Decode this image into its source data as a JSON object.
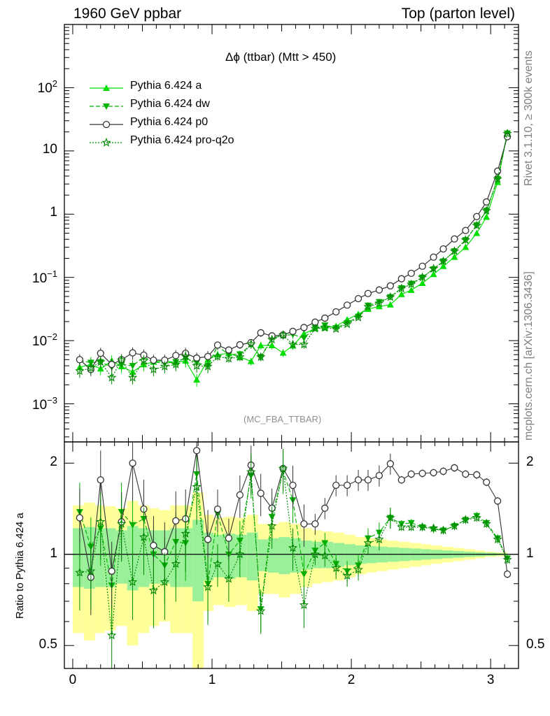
{
  "header": {
    "left": "1960 GeV ppbar",
    "right": "Top (parton level)"
  },
  "side_labels": {
    "rivet": "Rivet 3.1.10, ≥ 300k events",
    "site": "mcplots.cern.ch [arXiv:1306.3436]"
  },
  "colors": {
    "pythia_a": "#00e000",
    "pythia_dw": "#00b000",
    "pythia_p0": "#333333",
    "pythia_proq2o": "#008800",
    "band_inner": "#99f099",
    "band_outer": "#ffff99"
  },
  "chart_data": [
    {
      "type": "line",
      "title": "Δϕ (ttbar) (Mtt > 450)",
      "analysis_label": "(MC_FBA_TTBAR)",
      "xlim": [
        -0.06,
        3.2
      ],
      "ylim": [
        0.00025,
        1000
      ],
      "yscale": "log",
      "legend_position": "top-left",
      "ytick_labels": [
        "10^-3",
        "10^-2",
        "10^-1",
        "1",
        "10",
        "10^2"
      ],
      "x": [
        0.05,
        0.13,
        0.2,
        0.28,
        0.35,
        0.43,
        0.51,
        0.58,
        0.66,
        0.74,
        0.81,
        0.89,
        0.97,
        1.04,
        1.12,
        1.2,
        1.28,
        1.35,
        1.43,
        1.51,
        1.58,
        1.66,
        1.74,
        1.81,
        1.89,
        1.97,
        2.05,
        2.12,
        2.2,
        2.28,
        2.36,
        2.43,
        2.51,
        2.59,
        2.66,
        2.74,
        2.82,
        2.9,
        2.97,
        3.05,
        3.12
      ],
      "series": [
        {
          "name": "Pythia 6.424 a",
          "marker": "triangle-up",
          "line": "solid",
          "values": [
            0.0038,
            0.0042,
            0.0036,
            0.0048,
            0.0039,
            0.0032,
            0.0042,
            0.0046,
            0.0048,
            0.0045,
            0.0048,
            0.0024,
            0.005,
            0.006,
            0.0063,
            0.0055,
            0.0047,
            0.0084,
            0.0084,
            0.0064,
            0.0083,
            0.0128,
            0.0156,
            0.016,
            0.0169,
            0.0215,
            0.0262,
            0.0316,
            0.0347,
            0.037,
            0.054,
            0.063,
            0.081,
            0.112,
            0.15,
            0.21,
            0.3,
            0.5,
            0.9,
            3.2,
            19.5
          ]
        },
        {
          "name": "Pythia 6.424 dw",
          "marker": "triangle-down",
          "line": "dashed",
          "values": [
            0.0048,
            0.0045,
            0.0046,
            0.0038,
            0.0042,
            0.004,
            0.0055,
            0.0046,
            0.0044,
            0.0046,
            0.0053,
            0.0045,
            0.004,
            0.0082,
            0.006,
            0.0061,
            0.0086,
            0.0055,
            0.0111,
            0.012,
            0.0125,
            0.011,
            0.016,
            0.0175,
            0.0158,
            0.019,
            0.024,
            0.036,
            0.041,
            0.049,
            0.068,
            0.08,
            0.1,
            0.135,
            0.18,
            0.26,
            0.39,
            0.67,
            1.14,
            3.6,
            19.0
          ]
        },
        {
          "name": "Pythia 6.424 p0",
          "marker": "circle-open",
          "line": "solid",
          "values": [
            0.005,
            0.0035,
            0.0063,
            0.0042,
            0.005,
            0.0064,
            0.0059,
            0.0049,
            0.0049,
            0.0058,
            0.0063,
            0.0053,
            0.0056,
            0.0085,
            0.0071,
            0.0086,
            0.0093,
            0.0133,
            0.0119,
            0.0123,
            0.014,
            0.0161,
            0.0196,
            0.0227,
            0.0285,
            0.0364,
            0.0461,
            0.0556,
            0.0633,
            0.0735,
            0.0951,
            0.116,
            0.15,
            0.209,
            0.282,
            0.405,
            0.552,
            0.915,
            1.56,
            4.8,
            16.8
          ]
        },
        {
          "name": "Pythia 6.424 pro-q2o",
          "marker": "star-open",
          "line": "dotted",
          "values": [
            0.0033,
            0.0037,
            0.0046,
            0.0026,
            0.0049,
            0.0026,
            0.0048,
            0.0035,
            0.0039,
            0.0042,
            0.0056,
            0.004,
            0.0039,
            0.0056,
            0.0052,
            0.0055,
            0.0088,
            0.0055,
            0.0104,
            0.0123,
            0.0087,
            0.0087,
            0.0155,
            0.0159,
            0.0153,
            0.0182,
            0.0232,
            0.0343,
            0.039,
            0.0488,
            0.0665,
            0.0778,
            0.1,
            0.137,
            0.18,
            0.26,
            0.39,
            0.66,
            1.13,
            3.6,
            18.8
          ]
        }
      ]
    },
    {
      "type": "line",
      "ylabel": "Ratio to Pythia 6.424 a",
      "xlim": [
        -0.06,
        3.2
      ],
      "ylim": [
        0.42,
        2.35
      ],
      "yscale": "log",
      "xtick_labels": [
        "0",
        "1",
        "2",
        "3"
      ],
      "ytick_labels": [
        "0.5",
        "1",
        "2"
      ],
      "reference_line": 1,
      "bands": {
        "edges": [
          0,
          0.08,
          0.16,
          0.23,
          0.31,
          0.39,
          0.47,
          0.55,
          0.62,
          0.7,
          0.78,
          0.86,
          0.94,
          1.01,
          1.09,
          1.17,
          1.25,
          1.33,
          1.4,
          1.48,
          1.56,
          1.64,
          1.72,
          1.79,
          1.87,
          1.95,
          2.03,
          2.11,
          2.18,
          2.26,
          2.34,
          2.42,
          2.5,
          2.57,
          2.65,
          2.73,
          2.81,
          2.89,
          2.96,
          3.04,
          3.12
        ],
        "inner": [
          0.22,
          0.23,
          0.22,
          0.22,
          0.2,
          0.24,
          0.22,
          0.2,
          0.2,
          0.22,
          0.22,
          0.3,
          0.18,
          0.16,
          0.17,
          0.16,
          0.18,
          0.12,
          0.13,
          0.14,
          0.13,
          0.11,
          0.1,
          0.1,
          0.09,
          0.08,
          0.07,
          0.065,
          0.06,
          0.055,
          0.05,
          0.045,
          0.04,
          0.035,
          0.03,
          0.025,
          0.02,
          0.016,
          0.012,
          0.008
        ],
        "outer": [
          0.45,
          0.48,
          0.45,
          0.44,
          0.42,
          0.5,
          0.45,
          0.42,
          0.4,
          0.45,
          0.45,
          0.6,
          0.35,
          0.32,
          0.33,
          0.32,
          0.35,
          0.26,
          0.26,
          0.28,
          0.26,
          0.22,
          0.2,
          0.19,
          0.18,
          0.16,
          0.14,
          0.13,
          0.12,
          0.11,
          0.1,
          0.09,
          0.08,
          0.07,
          0.06,
          0.05,
          0.04,
          0.03,
          0.02,
          0.015
        ]
      },
      "series": [
        {
          "name": "Pythia 6.424 dw",
          "values": [
            1.38,
            1.06,
            1.22,
            0.79,
            1.38,
            1.25,
            1.31,
            1.0,
            0.92,
            1.1,
            1.09,
            1.84,
            0.8,
            1.36,
            1.0,
            1.11,
            1.82,
            0.66,
            1.33,
            1.88,
            1.51,
            0.86,
            1.03,
            1.09,
            0.93,
            0.88,
            0.92,
            1.13,
            1.18,
            1.32,
            1.26,
            1.27,
            1.23,
            1.21,
            1.2,
            1.24,
            1.3,
            1.34,
            1.27,
            1.13,
            0.97
          ]
        },
        {
          "name": "Pythia 6.424 p0",
          "values": [
            1.32,
            0.84,
            1.76,
            0.88,
            1.28,
            2.0,
            1.41,
            1.07,
            1.02,
            1.29,
            1.31,
            2.2,
            1.12,
            1.41,
            1.13,
            1.57,
            1.97,
            1.59,
            1.42,
            1.92,
            1.69,
            1.26,
            1.26,
            1.42,
            1.69,
            1.69,
            1.76,
            1.76,
            1.82,
            1.99,
            1.76,
            1.84,
            1.85,
            1.86,
            1.88,
            1.93,
            1.84,
            1.83,
            1.73,
            1.5,
            0.86
          ]
        },
        {
          "name": "Pythia 6.424 pro-q2o",
          "values": [
            0.87,
            0.88,
            1.28,
            0.54,
            1.26,
            0.81,
            1.14,
            0.76,
            0.81,
            0.93,
            1.17,
            1.67,
            0.78,
            0.93,
            0.83,
            1.0,
            1.87,
            0.65,
            1.24,
            1.92,
            1.05,
            0.68,
            1.0,
            0.99,
            0.9,
            0.85,
            0.89,
            1.09,
            1.12,
            1.32,
            1.23,
            1.23,
            1.23,
            1.22,
            1.2,
            1.24,
            1.3,
            1.32,
            1.26,
            1.12,
            0.96
          ]
        }
      ]
    }
  ]
}
